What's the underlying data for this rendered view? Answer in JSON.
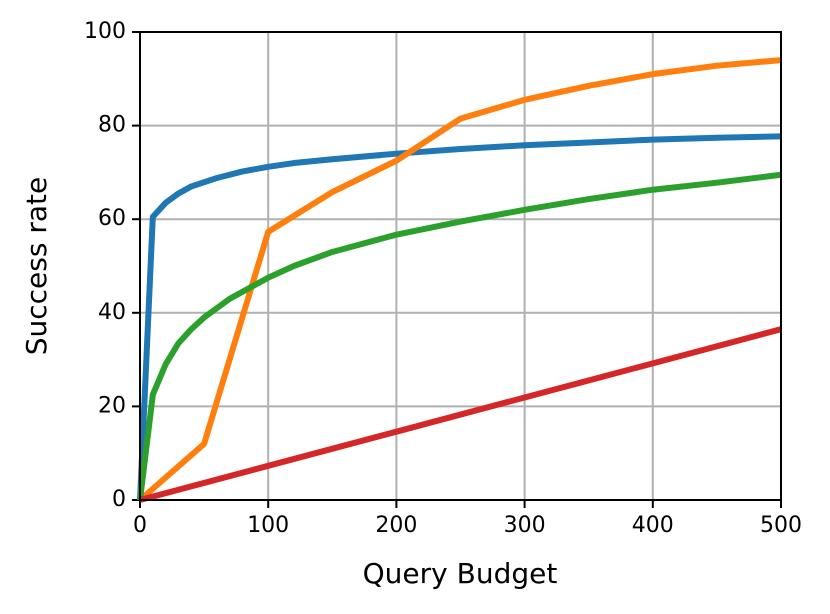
{
  "chart_data": {
    "type": "line",
    "xlabel": "Query Budget",
    "ylabel": "Success rate",
    "xlim": [
      0,
      500
    ],
    "ylim": [
      0,
      100
    ],
    "xticks": [
      0,
      100,
      200,
      300,
      400,
      500
    ],
    "yticks": [
      0,
      20,
      40,
      60,
      80,
      100
    ],
    "grid": true,
    "series": [
      {
        "color": "#1f77b4",
        "x": [
          0,
          10,
          20,
          30,
          40,
          60,
          80,
          100,
          120,
          150,
          200,
          250,
          300,
          350,
          400,
          450,
          500
        ],
        "values": [
          0,
          60.5,
          63.5,
          65.5,
          67,
          68.8,
          70.2,
          71.2,
          72,
          72.8,
          74,
          75,
          75.8,
          76.4,
          77,
          77.4,
          77.7
        ]
      },
      {
        "color": "#ff7f0e",
        "x": [
          0,
          50,
          100,
          150,
          200,
          250,
          300,
          350,
          400,
          450,
          500
        ],
        "values": [
          0,
          12,
          57.3,
          65.8,
          72.5,
          81.5,
          85.5,
          88.5,
          91,
          92.8,
          94
        ]
      },
      {
        "color": "#2ca02c",
        "x": [
          0,
          10,
          20,
          30,
          40,
          50,
          60,
          70,
          80,
          100,
          120,
          150,
          200,
          250,
          300,
          350,
          400,
          450,
          500
        ],
        "values": [
          0,
          22.5,
          29,
          33.5,
          36.5,
          39,
          41,
          43,
          44.5,
          47.5,
          50,
          53,
          56.7,
          59.5,
          62,
          64.3,
          66.3,
          67.8,
          69.5
        ]
      },
      {
        "color": "#d62728",
        "x": [
          0,
          100,
          200,
          300,
          400,
          500
        ],
        "values": [
          0,
          7.3,
          14.6,
          21.9,
          29.2,
          36.5
        ]
      }
    ]
  }
}
